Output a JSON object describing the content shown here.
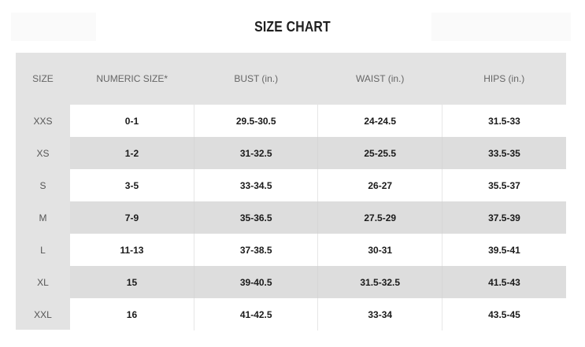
{
  "title": "SIZE CHART",
  "table": {
    "headers": [
      "SIZE",
      "NUMERIC SIZE*",
      "BUST (in.)",
      "WAIST (in.)",
      "HIPS (in.)"
    ],
    "rows": [
      [
        "XXS",
        "0-1",
        "29.5-30.5",
        "24-24.5",
        "31.5-33"
      ],
      [
        "XS",
        "1-2",
        "31-32.5",
        "25-25.5",
        "33.5-35"
      ],
      [
        "S",
        "3-5",
        "33-34.5",
        "26-27",
        "35.5-37"
      ],
      [
        "M",
        "7-9",
        "35-36.5",
        "27.5-29",
        "37.5-39"
      ],
      [
        "L",
        "11-13",
        "37-38.5",
        "30-31",
        "39.5-41"
      ],
      [
        "XL",
        "15",
        "39-40.5",
        "31.5-32.5",
        "41.5-43"
      ],
      [
        "XXL",
        "16",
        "41-42.5",
        "33-34",
        "43.5-45"
      ]
    ]
  },
  "colors": {
    "panel": "#e3e3e3",
    "row_light": "#ffffff",
    "row_dark": "#dddddd",
    "title_text": "#1f1f1f",
    "header_text": "#666666"
  }
}
